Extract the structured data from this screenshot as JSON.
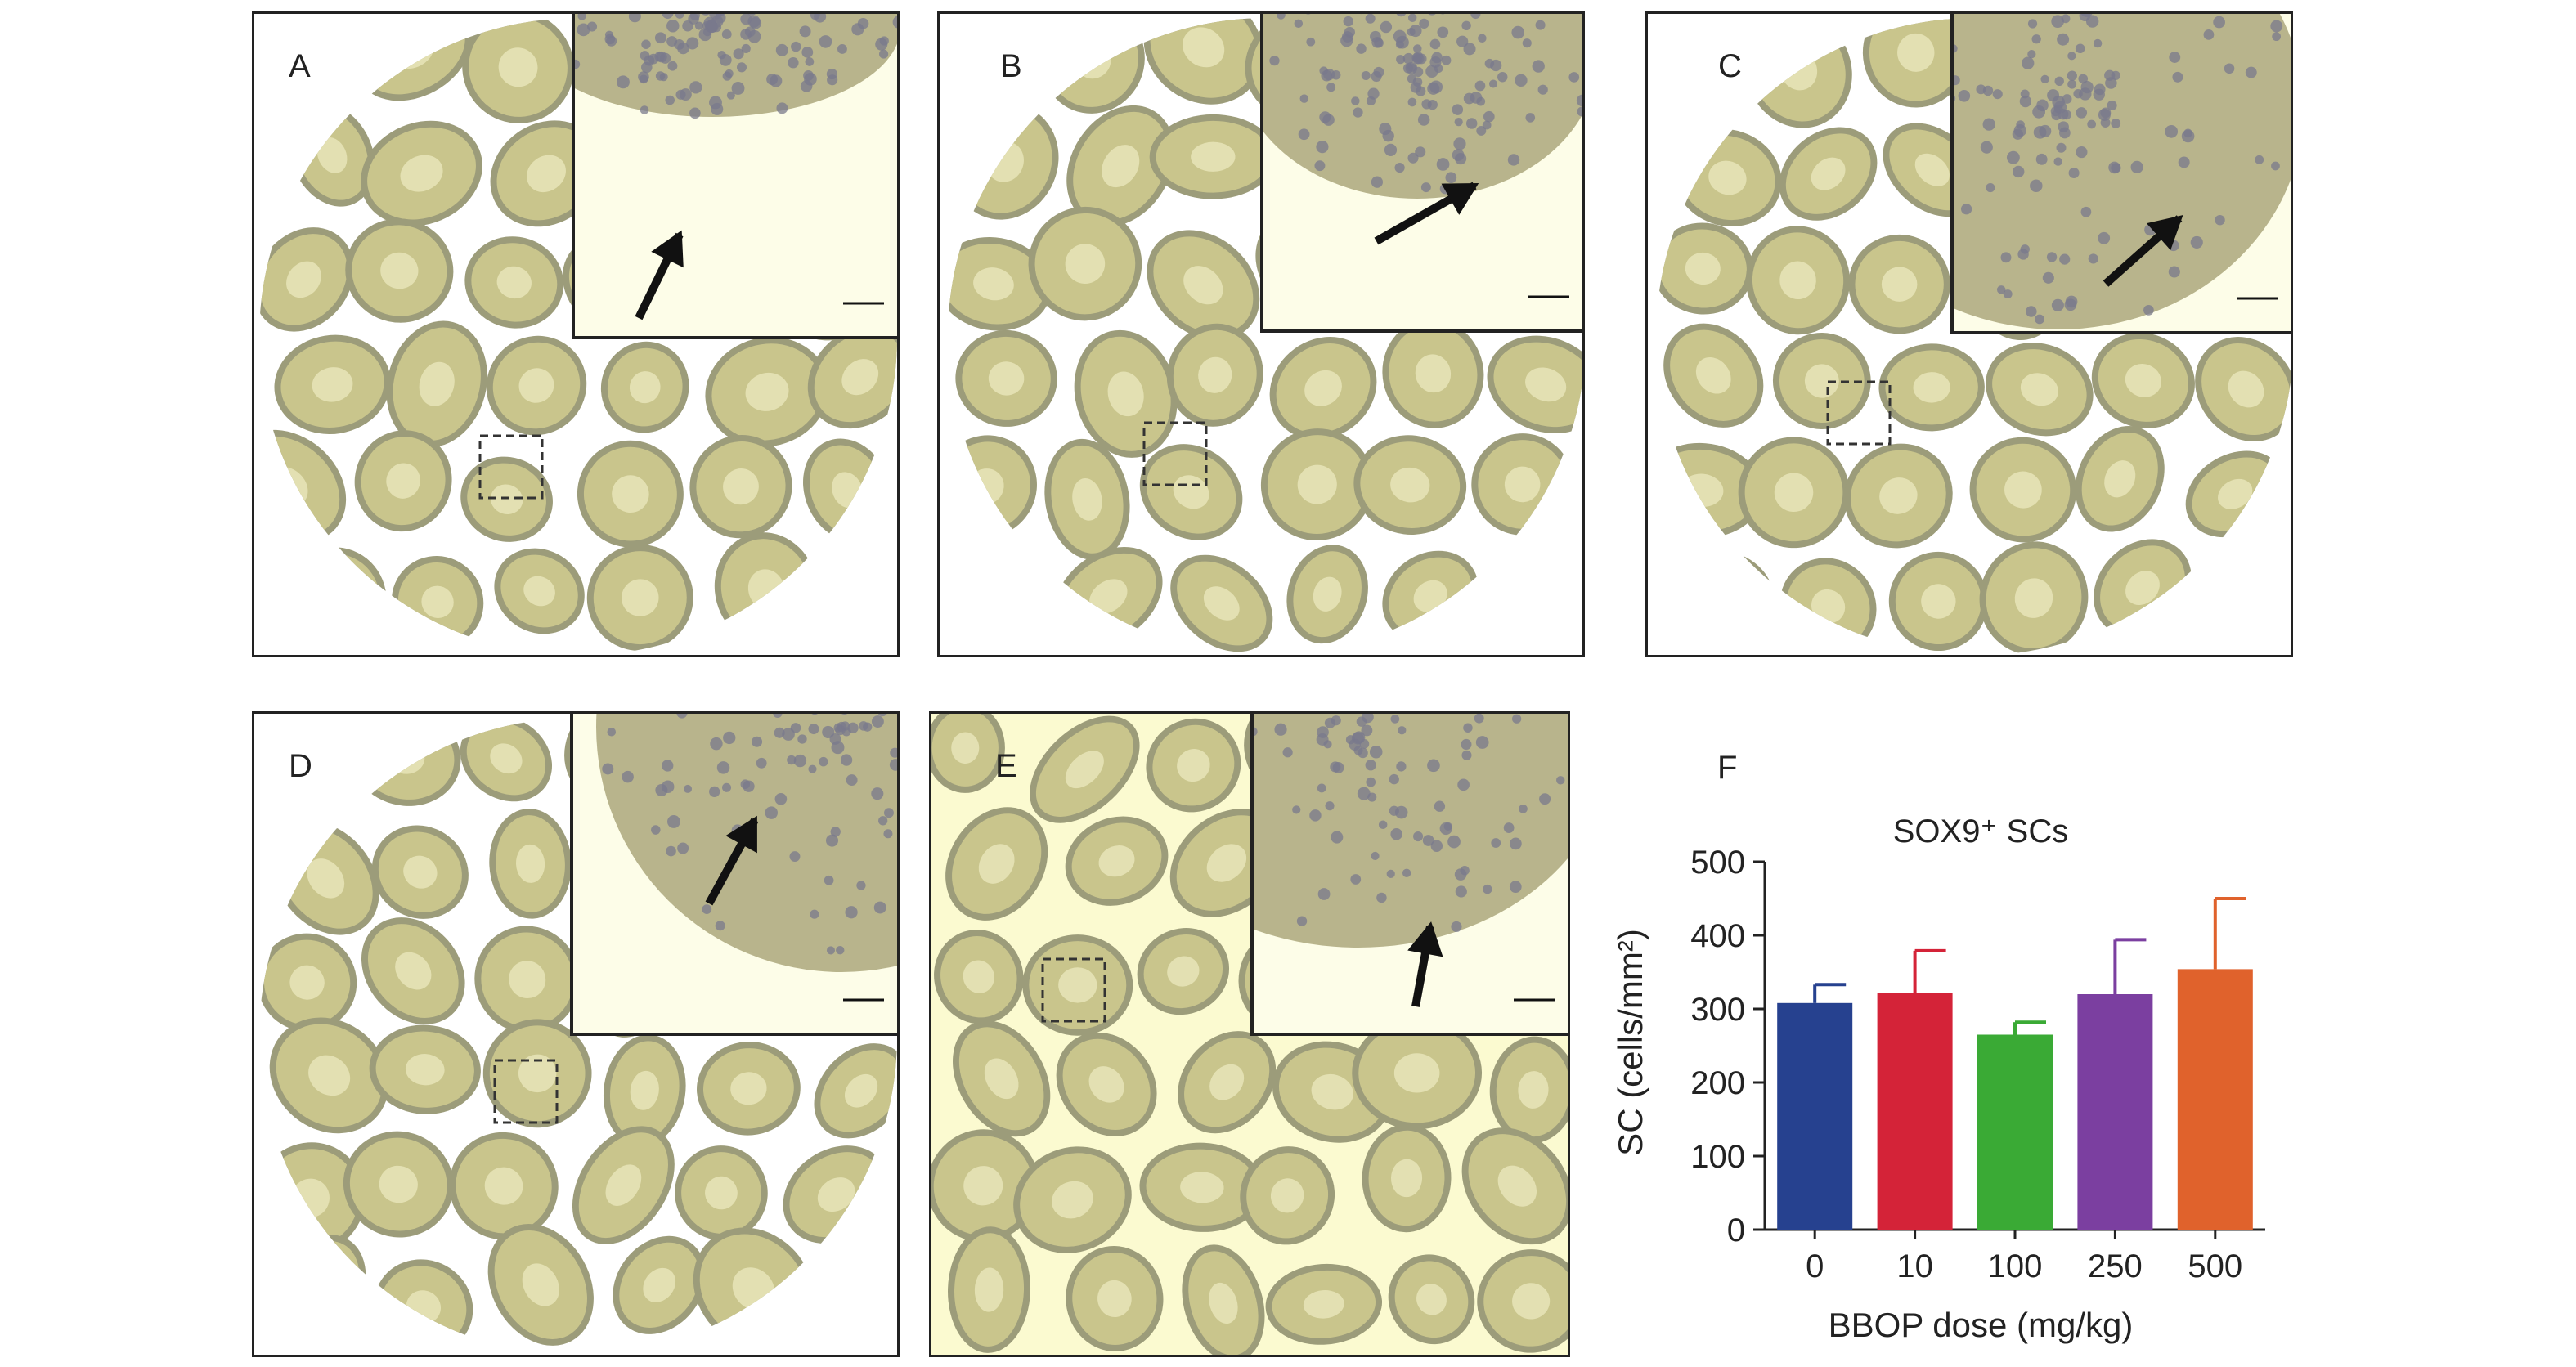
{
  "panels": [
    {
      "letter": "A"
    },
    {
      "letter": "B"
    },
    {
      "letter": "C"
    },
    {
      "letter": "D"
    },
    {
      "letter": "E"
    }
  ],
  "chart_label": "F",
  "chart_data": {
    "type": "bar",
    "title": "SOX9⁺ SCs",
    "xlabel": "BBOP dose (mg/kg)",
    "ylabel": "SC (cells/mm²)",
    "categories": [
      "0",
      "10",
      "100",
      "250",
      "500"
    ],
    "values": [
      308,
      322,
      265,
      320,
      354
    ],
    "errors": [
      25,
      57,
      17,
      74,
      96
    ],
    "colors": [
      "#26418f",
      "#d42338",
      "#3aaa35",
      "#7b3fa0",
      "#e0622c"
    ],
    "ylim": [
      0,
      500
    ],
    "yticks": [
      0,
      100,
      200,
      300,
      400,
      500
    ],
    "grid": false,
    "legend": "none"
  }
}
